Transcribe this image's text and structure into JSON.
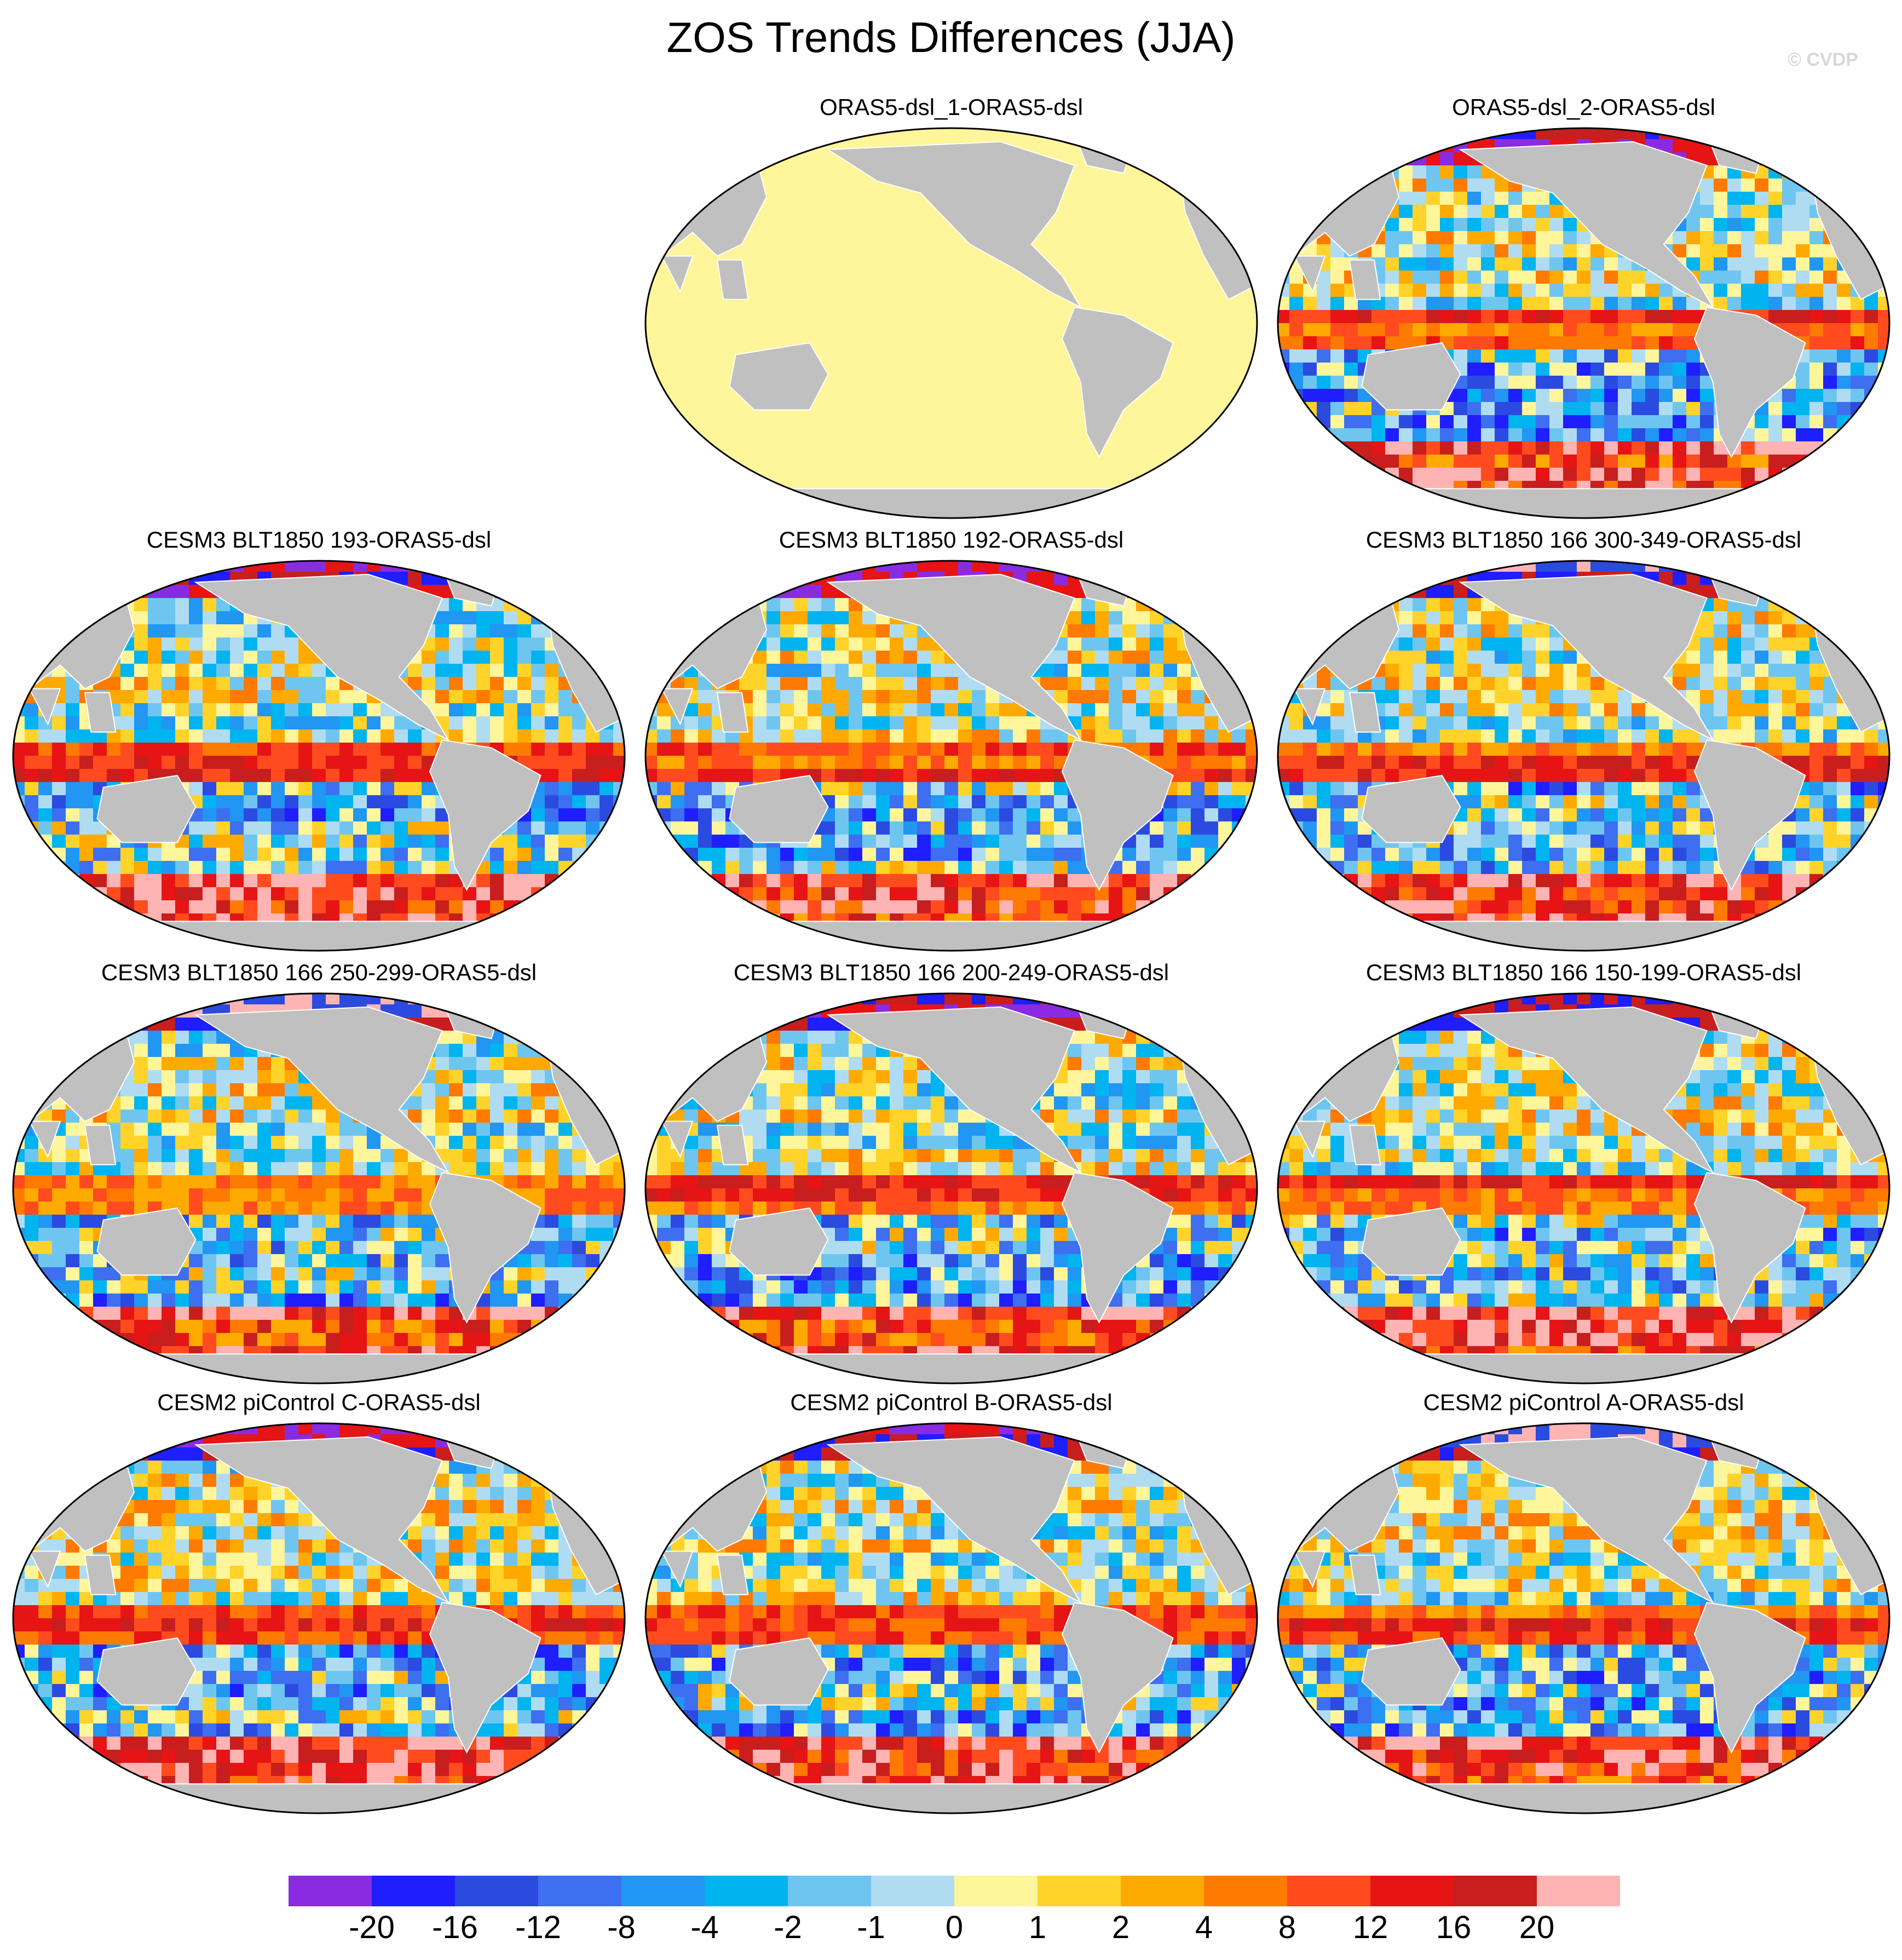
{
  "figure": {
    "title": "ZOS Trends Differences (JJA)",
    "watermark": "© CVDP"
  },
  "colors": {
    "land": "#c0c0c0",
    "outline": "#000000"
  },
  "panels": [
    {
      "title": "ORAS5-dsl_1-ORAS5-dsl",
      "uniform": true
    },
    {
      "title": "ORAS5-dsl_2-ORAS5-dsl",
      "seed": 2
    },
    {
      "title": "CESM3 BLT1850 193-ORAS5-dsl",
      "seed": 3
    },
    {
      "title": "CESM3 BLT1850 192-ORAS5-dsl",
      "seed": 4
    },
    {
      "title": "CESM3 BLT1850 166 300-349-ORAS5-dsl",
      "seed": 5
    },
    {
      "title": "CESM3 BLT1850 166 250-299-ORAS5-dsl",
      "seed": 6
    },
    {
      "title": "CESM3 BLT1850 166 200-249-ORAS5-dsl",
      "seed": 7
    },
    {
      "title": "CESM3 BLT1850 166 150-199-ORAS5-dsl",
      "seed": 8
    },
    {
      "title": "CESM2 piControl C-ORAS5-dsl",
      "seed": 9
    },
    {
      "title": "CESM2 piControl B-ORAS5-dsl",
      "seed": 10
    },
    {
      "title": "CESM2 piControl A-ORAS5-dsl",
      "seed": 11
    }
  ],
  "colorbar": {
    "tick_labels": [
      "-20",
      "-16",
      "-12",
      "-8",
      "-4",
      "-2",
      "-1",
      "0",
      "1",
      "2",
      "4",
      "8",
      "12",
      "16",
      "20"
    ],
    "colors": [
      "#8a2be2",
      "#1e1eff",
      "#2b4be0",
      "#3d6ff0",
      "#2196f3",
      "#00b4f0",
      "#6ec6f0",
      "#b0dcf2",
      "#fff59a",
      "#ffd32a",
      "#ffaa00",
      "#ff7a00",
      "#ff4b1e",
      "#e61414",
      "#c81e1e",
      "#ffb4b4"
    ]
  }
}
